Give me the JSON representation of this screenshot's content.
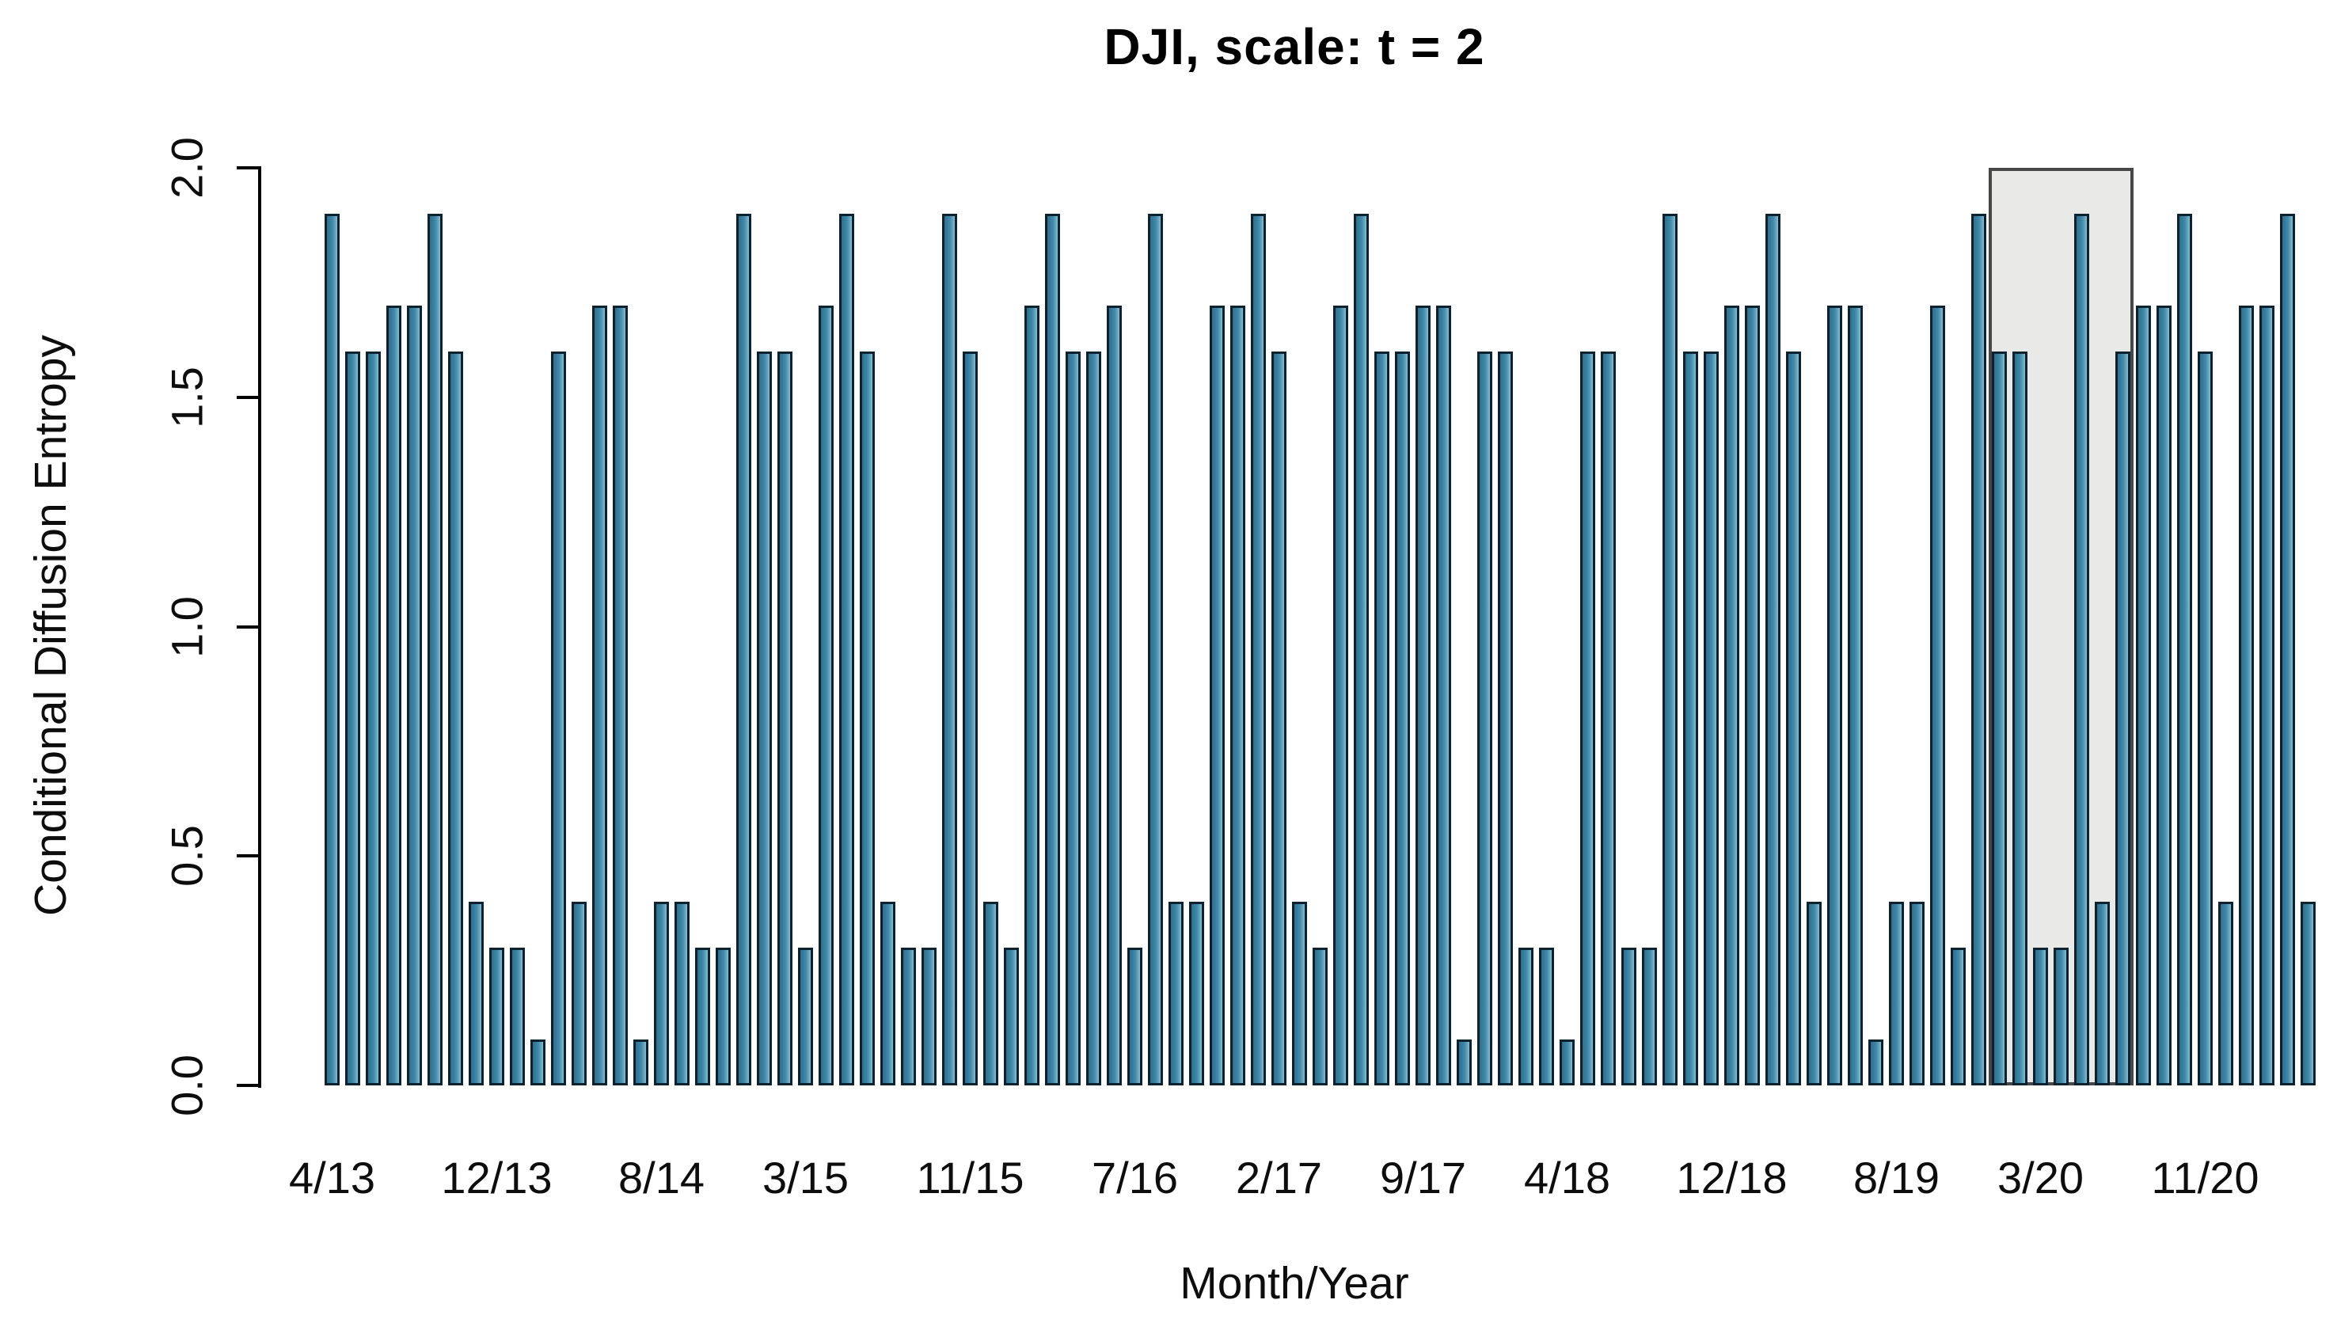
{
  "chart_data": {
    "type": "bar",
    "title": "DJI, scale: t = 2",
    "xlabel": "Month/Year",
    "ylabel": "Conditional Diffusion Entropy",
    "ylim": [
      0,
      2
    ],
    "grid": false,
    "legend": null,
    "background": "#ffffff",
    "axis_color": "#000000",
    "bar_fill": "#3e86a6",
    "bar_border": "#0c222e",
    "yticks": [
      0,
      0.5,
      1,
      1.5,
      2
    ],
    "ytick_labels": [
      "0.0",
      "0.5",
      "1.0",
      "1.5",
      "2.0"
    ],
    "values": [
      1.9,
      1.6,
      1.6,
      1.7,
      1.7,
      1.9,
      1.6,
      0.4,
      0.3,
      0.3,
      0.1,
      1.6,
      0.4,
      1.7,
      1.7,
      0.1,
      0.4,
      0.4,
      0.3,
      0.3,
      1.9,
      1.6,
      1.6,
      0.3,
      1.7,
      1.9,
      1.6,
      0.4,
      0.3,
      0.3,
      1.9,
      1.6,
      0.4,
      0.3,
      1.7,
      1.9,
      1.6,
      1.6,
      1.7,
      0.3,
      1.9,
      0.4,
      0.4,
      1.7,
      1.7,
      1.9,
      1.6,
      0.4,
      0.3,
      1.7,
      1.9,
      1.6,
      1.6,
      1.7,
      1.7,
      0.1,
      1.6,
      1.6,
      0.3,
      0.3,
      0.1,
      1.6,
      1.6,
      0.3,
      0.3,
      1.9,
      1.6,
      1.6,
      1.7,
      1.7,
      1.9,
      1.6,
      0.4,
      1.7,
      1.7,
      0.1,
      0.4,
      0.4,
      1.7,
      0.3,
      1.9,
      1.6,
      1.6,
      0.3,
      0.3,
      1.9,
      0.4,
      1.6,
      1.7,
      1.7,
      1.9,
      1.6,
      0.4,
      1.7,
      1.7,
      1.9,
      0.4
    ],
    "xticks": [
      {
        "bar_index": 0,
        "label": "4/13"
      },
      {
        "bar_index": 8,
        "label": "12/13"
      },
      {
        "bar_index": 16,
        "label": "8/14"
      },
      {
        "bar_index": 23,
        "label": "3/15"
      },
      {
        "bar_index": 31,
        "label": "11/15"
      },
      {
        "bar_index": 39,
        "label": "7/16"
      },
      {
        "bar_index": 46,
        "label": "2/17"
      },
      {
        "bar_index": 53,
        "label": "9/17"
      },
      {
        "bar_index": 60,
        "label": "4/18"
      },
      {
        "bar_index": 68,
        "label": "12/18"
      },
      {
        "bar_index": 76,
        "label": "8/19"
      },
      {
        "bar_index": 83,
        "label": "3/20"
      },
      {
        "bar_index": 91,
        "label": "11/20"
      }
    ],
    "highlight_region": {
      "from_bar": 81,
      "to_bar": 87,
      "y_from": 0,
      "y_to": 2,
      "fill": "#e9e9e7",
      "border": "#474747"
    }
  }
}
